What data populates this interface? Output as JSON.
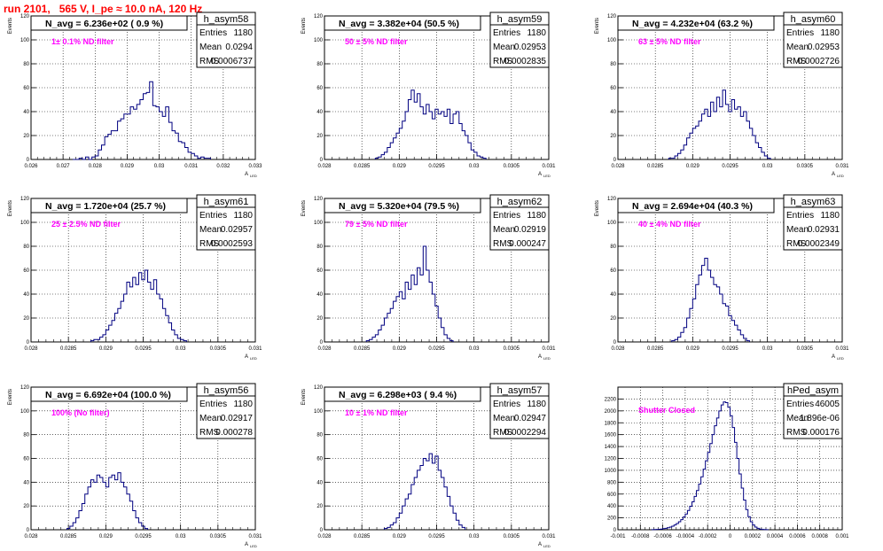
{
  "page_title": "run 2101,   565 V, I_pe ≈ 10.0 nA, 120 Hz",
  "colors": {
    "histogram_line": "#000080",
    "annotation_text": "#ff00ff",
    "title_text": "#ff0000",
    "axis_text": "#000000",
    "grid": "#000000"
  },
  "chart_data": [
    {
      "type": "histogram",
      "name": "h_asym58",
      "stats": [
        [
          "Entries",
          "1180"
        ],
        [
          "Mean",
          "0.0294"
        ],
        [
          "RMS",
          "0.0006737"
        ]
      ],
      "n_avg_label": "N_avg = 6.236e+02 ( 0.9 %)",
      "filter_label": "1± 0.1% ND filter",
      "xlabel": "A_LED",
      "ylabel": "Events",
      "xlim": [
        0.026,
        0.033
      ],
      "ylim": [
        0,
        120
      ],
      "xticks": [
        0.026,
        0.027,
        0.028,
        0.029,
        0.03,
        0.031,
        0.032,
        0.033
      ],
      "xticklabels": [
        "0.026",
        "0.027",
        "0.028",
        "0.029",
        "0.03",
        "0.031",
        "0.032",
        "0.033"
      ],
      "yticks": [
        0,
        20,
        40,
        60,
        80,
        100,
        120
      ],
      "yticklabels": [
        "0",
        "20",
        "40",
        "60",
        "80",
        "100",
        "120"
      ],
      "bin_width": 0.0001,
      "first_bin": 0.0273,
      "values": [
        0,
        0,
        1,
        0,
        2,
        0,
        2,
        3,
        8,
        12,
        19,
        21,
        24,
        24,
        32,
        34,
        38,
        38,
        44,
        42,
        46,
        50,
        55,
        56,
        65,
        45,
        44,
        40,
        36,
        44,
        31,
        24,
        22,
        15,
        14,
        10,
        6,
        5,
        3,
        1,
        2,
        1,
        1
      ]
    },
    {
      "type": "histogram",
      "name": "h_asym59",
      "stats": [
        [
          "Entries",
          "1180"
        ],
        [
          "Mean",
          "0.02953"
        ],
        [
          "RMS",
          "0.0002835"
        ]
      ],
      "n_avg_label": "N_avg = 3.382e+04 (50.5 %)",
      "filter_label": "50 ± 5% ND filter",
      "xlabel": "A_LED",
      "ylabel": "Events",
      "xlim": [
        0.028,
        0.031
      ],
      "ylim": [
        0,
        120
      ],
      "xticks": [
        0.028,
        0.0285,
        0.029,
        0.0295,
        0.03,
        0.0305,
        0.031
      ],
      "xticklabels": [
        "0.028",
        "0.0285",
        "0.029",
        "0.0295",
        "0.03",
        "0.0305",
        "0.031"
      ],
      "yticks": [
        0,
        20,
        40,
        60,
        80,
        100,
        120
      ],
      "yticklabels": [
        "0",
        "20",
        "40",
        "60",
        "80",
        "100",
        "120"
      ],
      "bin_width": 4e-05,
      "first_bin": 0.02868,
      "values": [
        1,
        2,
        4,
        6,
        10,
        14,
        18,
        22,
        26,
        32,
        40,
        50,
        58,
        48,
        55,
        44,
        38,
        46,
        40,
        34,
        42,
        38,
        40,
        36,
        42,
        30,
        38,
        40,
        30,
        24,
        20,
        14,
        8,
        6,
        3,
        2,
        1
      ]
    },
    {
      "type": "histogram",
      "name": "h_asym60",
      "stats": [
        [
          "Entries",
          "1180"
        ],
        [
          "Mean",
          "0.02953"
        ],
        [
          "RMS",
          "0.0002726"
        ]
      ],
      "n_avg_label": "N_avg = 4.232e+04 (63.2 %)",
      "filter_label": "63 ± 5% ND filter",
      "xlabel": "A_LED",
      "ylabel": "Events",
      "xlim": [
        0.028,
        0.031
      ],
      "ylim": [
        0,
        120
      ],
      "xticks": [
        0.028,
        0.0285,
        0.029,
        0.0295,
        0.03,
        0.0305,
        0.031
      ],
      "xticklabels": [
        "0.028",
        "0.0285",
        "0.029",
        "0.0295",
        "0.03",
        "0.0305",
        "0.031"
      ],
      "yticks": [
        0,
        20,
        40,
        60,
        80,
        100,
        120
      ],
      "yticklabels": [
        "0",
        "20",
        "40",
        "60",
        "80",
        "100",
        "120"
      ],
      "bin_width": 4e-05,
      "first_bin": 0.02868,
      "values": [
        1,
        1,
        3,
        5,
        8,
        12,
        18,
        22,
        26,
        28,
        32,
        38,
        42,
        36,
        48,
        40,
        52,
        44,
        58,
        46,
        40,
        50,
        42,
        44,
        36,
        40,
        32,
        26,
        20,
        14,
        10,
        6,
        3,
        1
      ]
    },
    {
      "type": "histogram",
      "name": "h_asym61",
      "stats": [
        [
          "Entries",
          "1180"
        ],
        [
          "Mean",
          "0.02957"
        ],
        [
          "RMS",
          "0.0002593"
        ]
      ],
      "n_avg_label": "N_avg = 1.720e+04 (25.7 %)",
      "filter_label": "25 ± 2.5% ND filter",
      "xlabel": "A_LED",
      "ylabel": "Events",
      "xlim": [
        0.028,
        0.031
      ],
      "ylim": [
        0,
        120
      ],
      "xticks": [
        0.028,
        0.0285,
        0.029,
        0.0295,
        0.03,
        0.0305,
        0.031
      ],
      "xticklabels": [
        "0.028",
        "0.0285",
        "0.029",
        "0.0295",
        "0.03",
        "0.0305",
        "0.031"
      ],
      "yticks": [
        0,
        20,
        40,
        60,
        80,
        100,
        120
      ],
      "yticklabels": [
        "0",
        "20",
        "40",
        "60",
        "80",
        "100",
        "120"
      ],
      "bin_width": 4e-05,
      "first_bin": 0.0288,
      "values": [
        1,
        2,
        2,
        4,
        6,
        10,
        14,
        18,
        24,
        28,
        34,
        40,
        50,
        46,
        54,
        48,
        58,
        52,
        60,
        50,
        44,
        52,
        40,
        36,
        28,
        22,
        16,
        10,
        6,
        3,
        2,
        1
      ]
    },
    {
      "type": "histogram",
      "name": "h_asym62",
      "stats": [
        [
          "Entries",
          "1180"
        ],
        [
          "Mean",
          "0.02919"
        ],
        [
          "RMS",
          "0.000247"
        ]
      ],
      "n_avg_label": "N_avg = 5.320e+04 (79.5 %)",
      "filter_label": "79 ± 5% ND filter",
      "xlabel": "A_LED",
      "ylabel": "Events",
      "xlim": [
        0.028,
        0.031
      ],
      "ylim": [
        0,
        120
      ],
      "xticks": [
        0.028,
        0.0285,
        0.029,
        0.0295,
        0.03,
        0.0305,
        0.031
      ],
      "xticklabels": [
        "0.028",
        "0.0285",
        "0.029",
        "0.0295",
        "0.03",
        "0.0305",
        "0.031"
      ],
      "yticks": [
        0,
        20,
        40,
        60,
        80,
        100,
        120
      ],
      "yticklabels": [
        "0",
        "20",
        "40",
        "60",
        "80",
        "100",
        "120"
      ],
      "bin_width": 4e-05,
      "first_bin": 0.02856,
      "values": [
        1,
        2,
        4,
        6,
        10,
        14,
        20,
        24,
        28,
        34,
        38,
        42,
        36,
        50,
        44,
        56,
        48,
        62,
        56,
        80,
        60,
        50,
        40,
        30,
        20,
        12,
        6,
        3,
        1
      ]
    },
    {
      "type": "histogram",
      "name": "h_asym63",
      "stats": [
        [
          "Entries",
          "1180"
        ],
        [
          "Mean",
          "0.02931"
        ],
        [
          "RMS",
          "0.0002349"
        ]
      ],
      "n_avg_label": "N_avg = 2.694e+04 (40.3 %)",
      "filter_label": "40 ± 4% ND filter",
      "xlabel": "A_LED",
      "ylabel": "Events",
      "xlim": [
        0.028,
        0.031
      ],
      "ylim": [
        0,
        120
      ],
      "xticks": [
        0.028,
        0.0285,
        0.029,
        0.0295,
        0.03,
        0.0305,
        0.031
      ],
      "xticklabels": [
        "0.028",
        "0.0285",
        "0.029",
        "0.0295",
        "0.03",
        "0.0305",
        "0.031"
      ],
      "yticks": [
        0,
        20,
        40,
        60,
        80,
        100,
        120
      ],
      "yticklabels": [
        "0",
        "20",
        "40",
        "60",
        "80",
        "100",
        "120"
      ],
      "bin_width": 4e-05,
      "first_bin": 0.02872,
      "values": [
        1,
        2,
        4,
        8,
        12,
        20,
        28,
        36,
        48,
        56,
        64,
        70,
        60,
        54,
        48,
        46,
        40,
        32,
        30,
        22,
        18,
        14,
        10,
        6,
        3,
        1
      ]
    },
    {
      "type": "histogram",
      "name": "h_asym56",
      "stats": [
        [
          "Entries",
          "1180"
        ],
        [
          "Mean",
          "0.02917"
        ],
        [
          "RMS",
          "0.000278"
        ]
      ],
      "n_avg_label": "N_avg = 6.692e+04 (100.0 %)",
      "filter_label": "100% (No filter)",
      "xlabel": "A_LED",
      "ylabel": "Events",
      "xlim": [
        0.028,
        0.031
      ],
      "ylim": [
        0,
        120
      ],
      "xticks": [
        0.028,
        0.0285,
        0.029,
        0.0295,
        0.03,
        0.0305,
        0.031
      ],
      "xticklabels": [
        "0.028",
        "0.0285",
        "0.029",
        "0.0295",
        "0.03",
        "0.0305",
        "0.031"
      ],
      "yticks": [
        0,
        20,
        40,
        60,
        80,
        100,
        120
      ],
      "yticklabels": [
        "0",
        "20",
        "40",
        "60",
        "80",
        "100",
        "120"
      ],
      "bin_width": 4e-05,
      "first_bin": 0.02848,
      "values": [
        1,
        3,
        6,
        10,
        16,
        22,
        30,
        36,
        42,
        40,
        46,
        44,
        40,
        36,
        44,
        46,
        42,
        48,
        40,
        36,
        30,
        24,
        16,
        10,
        6,
        3,
        1
      ]
    },
    {
      "type": "histogram",
      "name": "h_asym57",
      "stats": [
        [
          "Entries",
          "1180"
        ],
        [
          "Mean",
          "0.02947"
        ],
        [
          "RMS",
          "0.0002294"
        ]
      ],
      "n_avg_label": "N_avg = 6.298e+03 ( 9.4 %)",
      "filter_label": "10 ± 1% ND filter",
      "xlabel": "A_LED",
      "ylabel": "Events",
      "xlim": [
        0.028,
        0.031
      ],
      "ylim": [
        0,
        120
      ],
      "xticks": [
        0.028,
        0.0285,
        0.029,
        0.0295,
        0.03,
        0.0305,
        0.031
      ],
      "xticklabels": [
        "0.028",
        "0.0285",
        "0.029",
        "0.0295",
        "0.03",
        "0.0305",
        "0.031"
      ],
      "yticks": [
        0,
        20,
        40,
        60,
        80,
        100,
        120
      ],
      "yticklabels": [
        "0",
        "20",
        "40",
        "60",
        "80",
        "100",
        "120"
      ],
      "bin_width": 4e-05,
      "first_bin": 0.0288,
      "values": [
        1,
        2,
        4,
        6,
        10,
        14,
        20,
        26,
        30,
        38,
        44,
        50,
        54,
        60,
        58,
        64,
        56,
        62,
        50,
        44,
        36,
        28,
        20,
        14,
        8,
        4,
        2
      ]
    },
    {
      "type": "histogram",
      "name": "hPed_asym",
      "stats": [
        [
          "Entries",
          "46005"
        ],
        [
          "Mean",
          "1.896e-06"
        ],
        [
          "RMS",
          "0.000176"
        ]
      ],
      "n_avg_label": "",
      "filter_label": "Shutter Closed",
      "xlabel": "",
      "ylabel": "",
      "xlim": [
        -0.001,
        0.001
      ],
      "ylim": [
        0,
        2400
      ],
      "xticks": [
        -0.001,
        -0.0008,
        -0.0006,
        -0.0004,
        -0.0002,
        0,
        0.0002,
        0.0004,
        0.0006,
        0.0008,
        0.001
      ],
      "xticklabels": [
        "-0.001",
        "-0.0008",
        "-0.0006",
        "-0.0004",
        "-0.0002",
        "0",
        "0.0002",
        "0.0004",
        "0.0006",
        "0.0008",
        "0.001"
      ],
      "yticks": [
        0,
        200,
        400,
        600,
        800,
        1000,
        1200,
        1400,
        1600,
        1800,
        2000,
        2200
      ],
      "yticklabels": [
        "0",
        "200",
        "400",
        "600",
        "800",
        "1000",
        "1200",
        "1400",
        "1600",
        "1800",
        "2000",
        "2200"
      ],
      "bin_width": 2e-05,
      "first_bin": -0.0007,
      "values": [
        2,
        3,
        5,
        8,
        12,
        18,
        25,
        34,
        45,
        60,
        80,
        105,
        135,
        170,
        215,
        265,
        325,
        395,
        470,
        560,
        660,
        770,
        890,
        1020,
        1160,
        1300,
        1450,
        1600,
        1750,
        1880,
        2000,
        2100,
        2150,
        2140,
        2060,
        1920,
        1720,
        1470,
        1200,
        940,
        700,
        500,
        340,
        220,
        135,
        80,
        45,
        25,
        12,
        6,
        3,
        1
      ]
    }
  ]
}
